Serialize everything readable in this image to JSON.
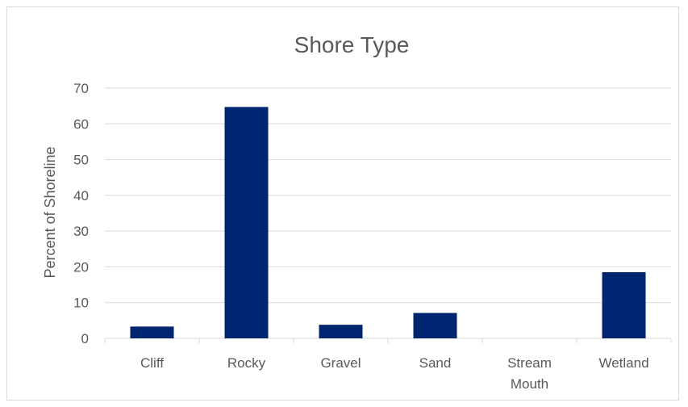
{
  "chart_data": {
    "type": "bar",
    "title": "Shore Type",
    "xlabel": "",
    "ylabel": "Percent of Shoreline",
    "categories": [
      [
        "Cliff"
      ],
      [
        "Rocky"
      ],
      [
        "Gravel"
      ],
      [
        "Sand"
      ],
      [
        "Stream",
        "Mouth"
      ],
      [
        "Wetland"
      ]
    ],
    "values": [
      3.3,
      64.7,
      3.8,
      7.1,
      0,
      18.5
    ],
    "ylim": [
      0,
      70
    ],
    "yticks": [
      0,
      10,
      20,
      30,
      40,
      50,
      60,
      70
    ],
    "grid": true,
    "bar_color": "#002570",
    "grid_color": "#d9d9d9"
  }
}
